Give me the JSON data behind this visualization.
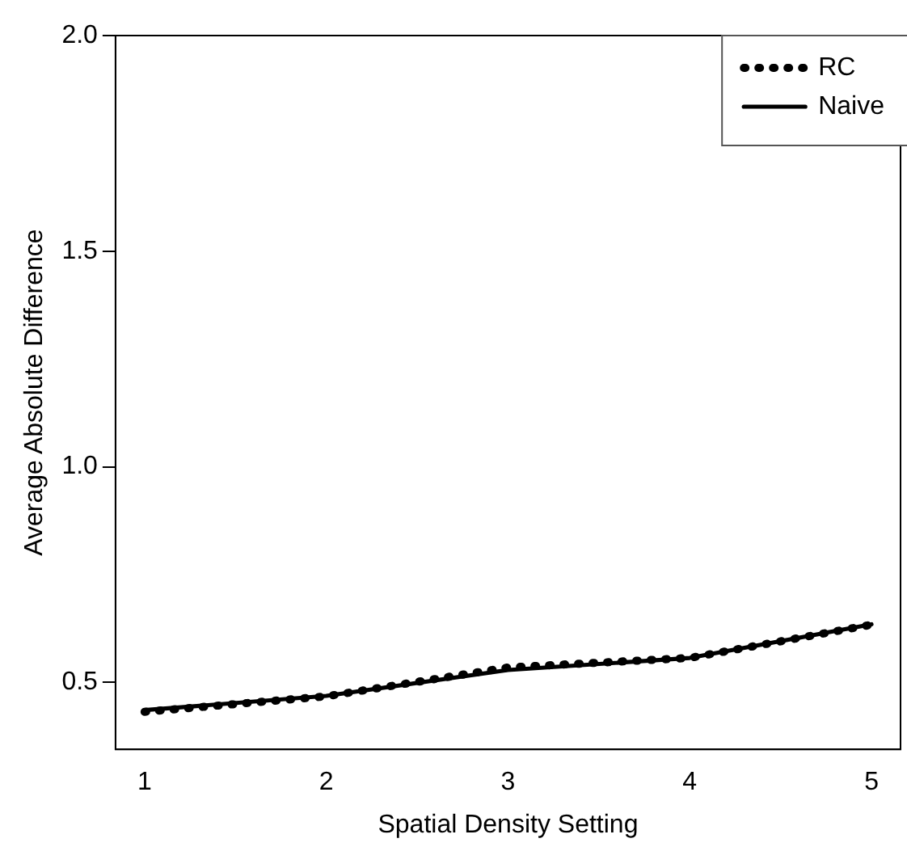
{
  "chart_data": {
    "type": "line",
    "xlabel": "Spatial Density Setting",
    "ylabel": "Average Absolute Difference",
    "x": [
      1,
      2,
      3,
      4,
      5
    ],
    "series": [
      {
        "name": "RC",
        "color": "#000000",
        "values": [
          0.432,
          0.468,
          0.535,
          0.557,
          0.634
        ],
        "line_style": "dotted"
      },
      {
        "name": "Naive",
        "color": "#000000",
        "values": [
          0.436,
          0.469,
          0.529,
          0.557,
          0.635
        ],
        "line_style": "solid"
      }
    ],
    "xlim": [
      0.84,
      5.16
    ],
    "xticks": [
      1,
      2,
      3,
      4,
      5
    ],
    "ylim": [
      0.345,
      2.0
    ],
    "yticks": [
      {
        "value": 0.5,
        "label": "0.5"
      },
      {
        "value": 1.0,
        "label": "1.0"
      },
      {
        "value": 1.5,
        "label": "1.5"
      },
      {
        "value": 2.0,
        "label": "2.0"
      }
    ],
    "grid": false,
    "legend": "top right",
    "marker": "none"
  }
}
